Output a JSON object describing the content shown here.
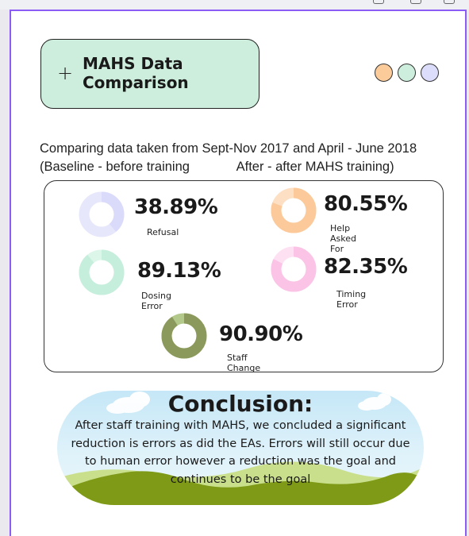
{
  "title": "MAHS Data Comparison",
  "add_symbol": "+",
  "colors": {
    "canvas_border": "#8b5cf6",
    "title_bg": "#cdeedd",
    "dot1": "#fccb9a",
    "dot2": "#cdeedd",
    "dot3": "#dcdcfb"
  },
  "intro": {
    "line1": "Comparing data taken from Sept-Nov 2017 and April - June 2018",
    "line2": "(Baseline - before training             After - after MAHS training)"
  },
  "stats": [
    {
      "value": "38.89%",
      "label": "Refusal",
      "fraction": 0.3889,
      "color": "#dadafb",
      "track": "#e7e7fc"
    },
    {
      "value": "80.55%",
      "label": "Help Asked For",
      "fraction": 0.8055,
      "color": "#fcca9a",
      "track": "#fde0c3"
    },
    {
      "value": "89.13%",
      "label": "Dosing Error",
      "fraction": 0.8913,
      "color": "#c6eedc",
      "track": "#dcf6ea"
    },
    {
      "value": "82.35%",
      "label": "Timing Error",
      "fraction": 0.8235,
      "color": "#fbc3e6",
      "track": "#fde0f2"
    },
    {
      "value": "90.90%",
      "label": "Staff Change",
      "fraction": 0.909,
      "color": "#8b9a5c",
      "track": "#b3c98b"
    }
  ],
  "conclusion": {
    "heading": "Conclusion:",
    "lines": [
      "After staff training with MAHS, we concluded a significant",
      "reduction is errors as did the EAs.  Errors will still occur due",
      "to human error however a reduction was the goal and",
      "continues to be the goal"
    ]
  }
}
